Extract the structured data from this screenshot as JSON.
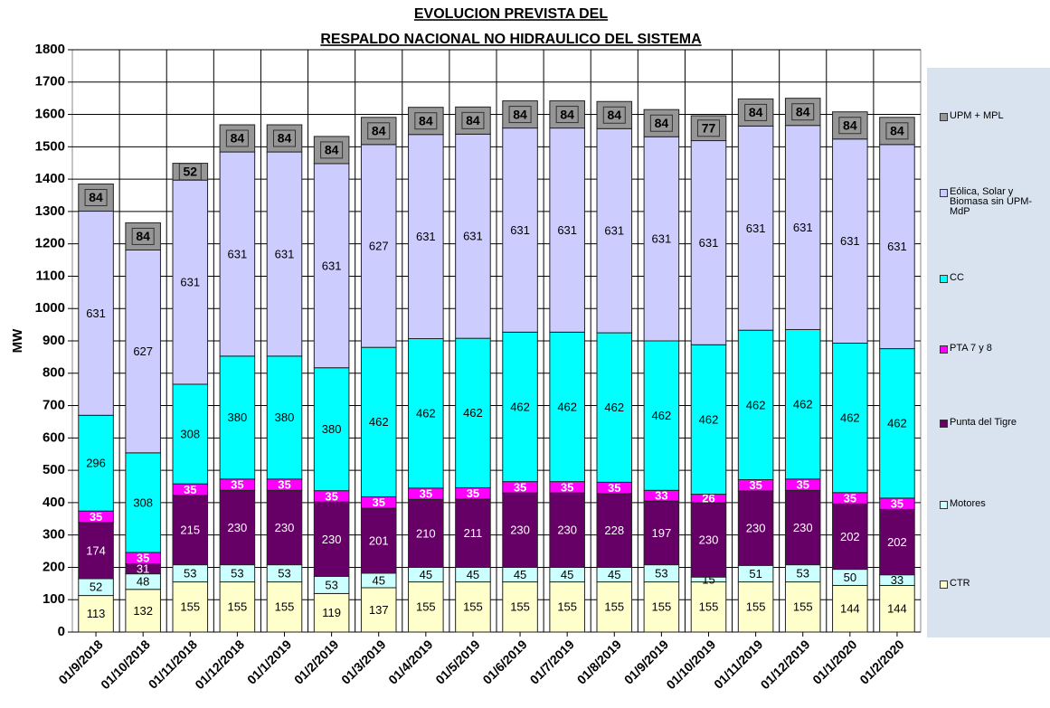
{
  "chart_data": {
    "type": "stacked_bar",
    "title": [
      "EVOLUCION PREVISTA DEL",
      "RESPALDO NACIONAL NO HIDRAULICO DEL SISTEMA"
    ],
    "y_label": "MW",
    "categories": [
      "01/9/2018",
      "01/10/2018",
      "01/11/2018",
      "01/12/2018",
      "01/1/2019",
      "01/2/2019",
      "01/3/2019",
      "01/4/2019",
      "01/5/2019",
      "01/6/2019",
      "01/7/2019",
      "01/8/2019",
      "01/9/2019",
      "01/10/2019",
      "01/11/2019",
      "01/12/2019",
      "01/1/2020",
      "01/2/2020"
    ],
    "series": [
      {
        "name": "CTR",
        "color": "#ffffcc",
        "values": [
          113,
          132,
          155,
          155,
          155,
          119,
          137,
          155,
          155,
          155,
          155,
          155,
          155,
          155,
          155,
          155,
          144,
          144
        ]
      },
      {
        "name": "Motores",
        "color": "#ccffff",
        "values": [
          52,
          48,
          53,
          53,
          53,
          53,
          45,
          45,
          45,
          45,
          45,
          45,
          53,
          15,
          51,
          53,
          50,
          33
        ]
      },
      {
        "name": "Punta del Tigre",
        "color": "#660066",
        "values": [
          174,
          31,
          215,
          230,
          230,
          230,
          201,
          210,
          211,
          230,
          230,
          228,
          197,
          230,
          230,
          230,
          202,
          202
        ]
      },
      {
        "name": "PTA 7 y 8",
        "color": "#ff00ff",
        "values": [
          35,
          35,
          35,
          35,
          35,
          35,
          35,
          35,
          35,
          35,
          35,
          35,
          33,
          26,
          35,
          35,
          35,
          35
        ]
      },
      {
        "name": "CC",
        "color": "#00ffff",
        "values": [
          296,
          308,
          308,
          380,
          380,
          380,
          462,
          462,
          462,
          462,
          462,
          462,
          462,
          462,
          462,
          462,
          462,
          462
        ]
      },
      {
        "name": "Eólica, Solar y Biomasa sin UPM-MdP",
        "color": "#ccccff",
        "values": [
          631,
          627,
          631,
          631,
          631,
          631,
          627,
          631,
          631,
          631,
          631,
          631,
          631,
          631,
          631,
          631,
          631,
          631
        ]
      },
      {
        "name": "UPM + MPL",
        "color": "#969696",
        "values": [
          84,
          84,
          52,
          84,
          84,
          84,
          84,
          84,
          84,
          84,
          84,
          84,
          84,
          77,
          84,
          84,
          84,
          84
        ]
      }
    ],
    "ylim": [
      0,
      1800
    ],
    "yticks": [
      0,
      100,
      200,
      300,
      400,
      500,
      600,
      700,
      800,
      900,
      1000,
      1100,
      1200,
      1300,
      1400,
      1500,
      1600,
      1700,
      1800
    ],
    "grid": true
  }
}
